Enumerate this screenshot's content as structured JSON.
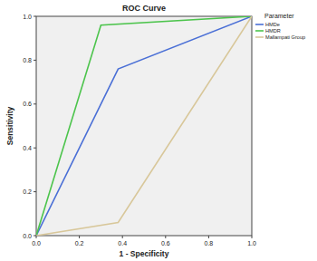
{
  "chart_data": {
    "type": "line",
    "title": "ROC Curve",
    "x_label": "1 - Specificity",
    "y_label": "Sensitivity",
    "legend_title": "Parameter",
    "legend": "right",
    "grid": false,
    "xlim": [
      0,
      1
    ],
    "ylim": [
      0,
      1
    ],
    "xticks": [
      {
        "value": 0,
        "label": "0.0"
      },
      {
        "value": 0.2,
        "label": "0.2"
      },
      {
        "value": 0.4,
        "label": "0.4"
      },
      {
        "value": 0.6,
        "label": "0.6"
      },
      {
        "value": 0.8,
        "label": "0.8"
      },
      {
        "value": 1,
        "label": "1.0"
      }
    ],
    "yticks": [
      {
        "value": 0,
        "label": "0.0"
      },
      {
        "value": 0.2,
        "label": "0.2"
      },
      {
        "value": 0.4,
        "label": "0.4"
      },
      {
        "value": 0.6,
        "label": "0.6"
      },
      {
        "value": 0.8,
        "label": "0.8"
      },
      {
        "value": 1,
        "label": "1.0"
      }
    ],
    "series": [
      {
        "name": "HMDe",
        "color": "#4a6fd6",
        "x": [
          0,
          0.38,
          1
        ],
        "values": [
          0,
          0.76,
          1
        ]
      },
      {
        "name": "HMDR",
        "color": "#4cc44c",
        "x": [
          0,
          0.3,
          1
        ],
        "values": [
          0,
          0.96,
          1
        ]
      },
      {
        "name": "Mallampati Group",
        "color": "#d8c79a",
        "x": [
          0,
          0.38,
          1
        ],
        "values": [
          0,
          0.06,
          1
        ]
      }
    ]
  }
}
